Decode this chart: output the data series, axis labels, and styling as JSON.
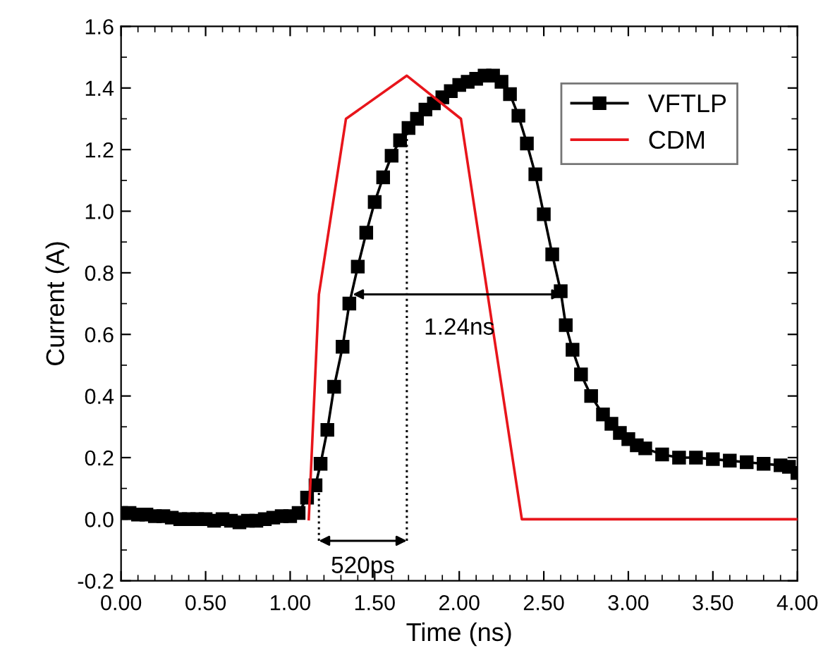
{
  "chart_data": {
    "type": "line",
    "xlabel": "Time (ns)",
    "ylabel": "Current (A)",
    "xlim": [
      0,
      4
    ],
    "ylim": [
      -0.2,
      1.6
    ],
    "xticks": [
      {
        "value": 0,
        "label": "0.00"
      },
      {
        "value": 0.5,
        "label": "0.50"
      },
      {
        "value": 1,
        "label": "1.00"
      },
      {
        "value": 1.5,
        "label": "1.50"
      },
      {
        "value": 2,
        "label": "2.00"
      },
      {
        "value": 2.5,
        "label": "2.50"
      },
      {
        "value": 3,
        "label": "3.00"
      },
      {
        "value": 3.5,
        "label": "3.50"
      },
      {
        "value": 4,
        "label": "4.00"
      }
    ],
    "yticks": [
      {
        "value": -0.2,
        "label": "-0.2"
      },
      {
        "value": 0,
        "label": "0.0"
      },
      {
        "value": 0.2,
        "label": "0.2"
      },
      {
        "value": 0.4,
        "label": "0.4"
      },
      {
        "value": 0.6,
        "label": "0.6"
      },
      {
        "value": 0.8,
        "label": "0.8"
      },
      {
        "value": 1,
        "label": "1.0"
      },
      {
        "value": 1.2,
        "label": "1.2"
      },
      {
        "value": 1.4,
        "label": "1.4"
      },
      {
        "value": 1.6,
        "label": "1.6"
      }
    ],
    "grid": false,
    "legend": "top right",
    "series": [
      {
        "name": "VFTLP",
        "color": "#000000",
        "marker": "square",
        "line_style": "solid",
        "x": [
          0,
          0.05,
          0.1,
          0.15,
          0.2,
          0.25,
          0.3,
          0.35,
          0.4,
          0.45,
          0.5,
          0.55,
          0.6,
          0.65,
          0.7,
          0.75,
          0.8,
          0.85,
          0.9,
          0.95,
          1.0,
          1.05,
          1.1,
          1.15,
          1.18,
          1.22,
          1.26,
          1.31,
          1.35,
          1.4,
          1.45,
          1.5,
          1.55,
          1.6,
          1.65,
          1.7,
          1.75,
          1.8,
          1.85,
          1.9,
          1.95,
          2.0,
          2.05,
          2.1,
          2.15,
          2.2,
          2.25,
          2.3,
          2.35,
          2.4,
          2.45,
          2.5,
          2.55,
          2.6,
          2.63,
          2.67,
          2.72,
          2.78,
          2.85,
          2.9,
          2.95,
          3.0,
          3.05,
          3.1,
          3.2,
          3.3,
          3.4,
          3.5,
          3.6,
          3.7,
          3.8,
          3.9,
          3.95,
          4.0
        ],
        "values": [
          0.02,
          0.02,
          0.015,
          0.015,
          0.01,
          0.01,
          0.005,
          0.0,
          0.0,
          0.0,
          0.0,
          -0.005,
          0.0,
          -0.005,
          -0.01,
          -0.005,
          -0.005,
          0.0,
          0.005,
          0.01,
          0.01,
          0.02,
          0.07,
          0.11,
          0.18,
          0.29,
          0.43,
          0.56,
          0.7,
          0.82,
          0.93,
          1.03,
          1.11,
          1.18,
          1.23,
          1.27,
          1.3,
          1.33,
          1.35,
          1.37,
          1.39,
          1.41,
          1.42,
          1.43,
          1.44,
          1.44,
          1.42,
          1.38,
          1.31,
          1.22,
          1.12,
          0.99,
          0.86,
          0.74,
          0.63,
          0.55,
          0.47,
          0.4,
          0.34,
          0.31,
          0.28,
          0.26,
          0.24,
          0.23,
          0.21,
          0.2,
          0.2,
          0.195,
          0.19,
          0.185,
          0.18,
          0.175,
          0.17,
          0.15
        ]
      },
      {
        "name": "CDM",
        "color": "#e8151b",
        "marker": "none",
        "line_style": "solid",
        "x": [
          1.11,
          1.17,
          1.33,
          1.69,
          2.01,
          2.37,
          4.0
        ],
        "values": [
          0,
          0.73,
          1.3,
          1.44,
          1.3,
          0,
          0
        ]
      },
      {
        "color": "#000000",
        "marker": "none",
        "line_style": "dotted",
        "x": [
          1.69,
          1.69
        ],
        "values": [
          -0.07,
          1.27
        ]
      },
      {
        "color": "#000000",
        "marker": "none",
        "line_style": "dotted",
        "x": [
          1.17,
          1.17
        ],
        "values": [
          -0.07,
          0.11
        ]
      }
    ],
    "annotations": [
      "1.24ns",
      "520ps"
    ]
  }
}
